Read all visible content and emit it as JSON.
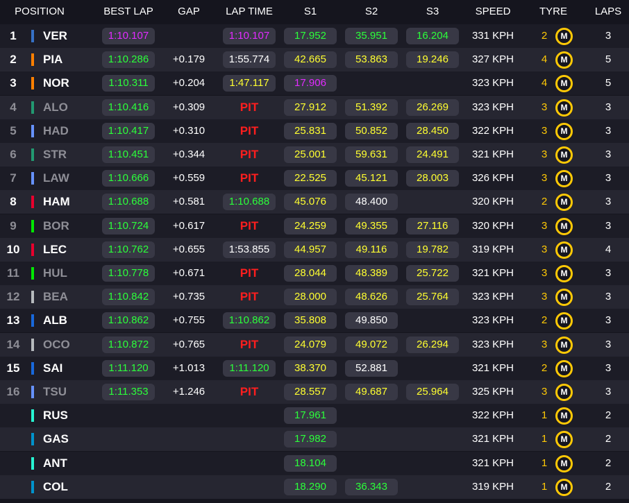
{
  "headers": {
    "position": "POSITION",
    "best_lap": "BEST LAP",
    "gap": "GAP",
    "lap_time": "LAP TIME",
    "s1": "S1",
    "s2": "S2",
    "s3": "S3",
    "speed": "SPEED",
    "tyre": "TYRE",
    "laps": "LAPS"
  },
  "tyre_compound_letter": "M",
  "colors": {
    "purple": "#e22bff",
    "green": "#2bff3a",
    "yellow": "#ffff30",
    "white": "#ffffff",
    "pit_red": "#ff1e1e",
    "tyre_medium": "#ffc906"
  },
  "rows": [
    {
      "pos": "1",
      "code": "VER",
      "team_color": "#3671c6",
      "running": true,
      "best_lap": "1:10.107",
      "best_lap_color": "purple",
      "gap": "",
      "lap_time": "1:10.107",
      "lap_time_color": "purple",
      "pit": "",
      "s1": "17.952",
      "s1_color": "green",
      "s2": "35.951",
      "s2_color": "green",
      "s3": "16.204",
      "s3_color": "green",
      "speed": "331 KPH",
      "tyre_age": "2",
      "laps": "3"
    },
    {
      "pos": "2",
      "code": "PIA",
      "team_color": "#ff8000",
      "running": true,
      "best_lap": "1:10.286",
      "best_lap_color": "green",
      "gap": "+0.179",
      "lap_time": "1:55.774",
      "lap_time_color": "white",
      "pit": "",
      "s1": "42.665",
      "s1_color": "yellow",
      "s2": "53.863",
      "s2_color": "yellow",
      "s3": "19.246",
      "s3_color": "yellow",
      "speed": "327 KPH",
      "tyre_age": "4",
      "laps": "5"
    },
    {
      "pos": "3",
      "code": "NOR",
      "team_color": "#ff8000",
      "running": true,
      "best_lap": "1:10.311",
      "best_lap_color": "green",
      "gap": "+0.204",
      "lap_time": "1:47.117",
      "lap_time_color": "yellow",
      "pit": "",
      "s1": "17.906",
      "s1_color": "purple",
      "s2": "",
      "s2_color": "white",
      "s3": "",
      "s3_color": "white",
      "speed": "323 KPH",
      "tyre_age": "4",
      "laps": "5"
    },
    {
      "pos": "4",
      "code": "ALO",
      "team_color": "#229971",
      "running": false,
      "best_lap": "1:10.416",
      "best_lap_color": "green",
      "gap": "+0.309",
      "lap_time": "",
      "lap_time_color": "white",
      "pit": "PIT",
      "s1": "27.912",
      "s1_color": "yellow",
      "s2": "51.392",
      "s2_color": "yellow",
      "s3": "26.269",
      "s3_color": "yellow",
      "speed": "323 KPH",
      "tyre_age": "3",
      "laps": "3"
    },
    {
      "pos": "5",
      "code": "HAD",
      "team_color": "#6692ff",
      "running": false,
      "best_lap": "1:10.417",
      "best_lap_color": "green",
      "gap": "+0.310",
      "lap_time": "",
      "lap_time_color": "white",
      "pit": "PIT",
      "s1": "25.831",
      "s1_color": "yellow",
      "s2": "50.852",
      "s2_color": "yellow",
      "s3": "28.450",
      "s3_color": "yellow",
      "speed": "322 KPH",
      "tyre_age": "3",
      "laps": "3"
    },
    {
      "pos": "6",
      "code": "STR",
      "team_color": "#229971",
      "running": false,
      "best_lap": "1:10.451",
      "best_lap_color": "green",
      "gap": "+0.344",
      "lap_time": "",
      "lap_time_color": "white",
      "pit": "PIT",
      "s1": "25.001",
      "s1_color": "yellow",
      "s2": "59.631",
      "s2_color": "yellow",
      "s3": "24.491",
      "s3_color": "yellow",
      "speed": "321 KPH",
      "tyre_age": "3",
      "laps": "3"
    },
    {
      "pos": "7",
      "code": "LAW",
      "team_color": "#6692ff",
      "running": false,
      "best_lap": "1:10.666",
      "best_lap_color": "green",
      "gap": "+0.559",
      "lap_time": "",
      "lap_time_color": "white",
      "pit": "PIT",
      "s1": "22.525",
      "s1_color": "yellow",
      "s2": "45.121",
      "s2_color": "yellow",
      "s3": "28.003",
      "s3_color": "yellow",
      "speed": "326 KPH",
      "tyre_age": "3",
      "laps": "3"
    },
    {
      "pos": "8",
      "code": "HAM",
      "team_color": "#e8002d",
      "running": true,
      "best_lap": "1:10.688",
      "best_lap_color": "green",
      "gap": "+0.581",
      "lap_time": "1:10.688",
      "lap_time_color": "green",
      "pit": "",
      "s1": "45.076",
      "s1_color": "yellow",
      "s2": "48.400",
      "s2_color": "white",
      "s3": "",
      "s3_color": "white",
      "speed": "320 KPH",
      "tyre_age": "2",
      "laps": "3"
    },
    {
      "pos": "9",
      "code": "BOR",
      "team_color": "#00e701",
      "running": false,
      "best_lap": "1:10.724",
      "best_lap_color": "green",
      "gap": "+0.617",
      "lap_time": "",
      "lap_time_color": "white",
      "pit": "PIT",
      "s1": "24.259",
      "s1_color": "yellow",
      "s2": "49.355",
      "s2_color": "yellow",
      "s3": "27.116",
      "s3_color": "yellow",
      "speed": "320 KPH",
      "tyre_age": "3",
      "laps": "3"
    },
    {
      "pos": "10",
      "code": "LEC",
      "team_color": "#e8002d",
      "running": true,
      "best_lap": "1:10.762",
      "best_lap_color": "green",
      "gap": "+0.655",
      "lap_time": "1:53.855",
      "lap_time_color": "white",
      "pit": "",
      "s1": "44.957",
      "s1_color": "yellow",
      "s2": "49.116",
      "s2_color": "yellow",
      "s3": "19.782",
      "s3_color": "yellow",
      "speed": "319 KPH",
      "tyre_age": "3",
      "laps": "4"
    },
    {
      "pos": "11",
      "code": "HUL",
      "team_color": "#00e701",
      "running": false,
      "best_lap": "1:10.778",
      "best_lap_color": "green",
      "gap": "+0.671",
      "lap_time": "",
      "lap_time_color": "white",
      "pit": "PIT",
      "s1": "28.044",
      "s1_color": "yellow",
      "s2": "48.389",
      "s2_color": "yellow",
      "s3": "25.722",
      "s3_color": "yellow",
      "speed": "321 KPH",
      "tyre_age": "3",
      "laps": "3"
    },
    {
      "pos": "12",
      "code": "BEA",
      "team_color": "#b6babd",
      "running": false,
      "best_lap": "1:10.842",
      "best_lap_color": "green",
      "gap": "+0.735",
      "lap_time": "",
      "lap_time_color": "white",
      "pit": "PIT",
      "s1": "28.000",
      "s1_color": "yellow",
      "s2": "48.626",
      "s2_color": "yellow",
      "s3": "25.764",
      "s3_color": "yellow",
      "speed": "323 KPH",
      "tyre_age": "3",
      "laps": "3"
    },
    {
      "pos": "13",
      "code": "ALB",
      "team_color": "#1868db",
      "running": true,
      "best_lap": "1:10.862",
      "best_lap_color": "green",
      "gap": "+0.755",
      "lap_time": "1:10.862",
      "lap_time_color": "green",
      "pit": "",
      "s1": "35.808",
      "s1_color": "yellow",
      "s2": "49.850",
      "s2_color": "white",
      "s3": "",
      "s3_color": "white",
      "speed": "323 KPH",
      "tyre_age": "2",
      "laps": "3"
    },
    {
      "pos": "14",
      "code": "OCO",
      "team_color": "#b6babd",
      "running": false,
      "best_lap": "1:10.872",
      "best_lap_color": "green",
      "gap": "+0.765",
      "lap_time": "",
      "lap_time_color": "white",
      "pit": "PIT",
      "s1": "24.079",
      "s1_color": "yellow",
      "s2": "49.072",
      "s2_color": "yellow",
      "s3": "26.294",
      "s3_color": "yellow",
      "speed": "323 KPH",
      "tyre_age": "3",
      "laps": "3"
    },
    {
      "pos": "15",
      "code": "SAI",
      "team_color": "#1868db",
      "running": true,
      "best_lap": "1:11.120",
      "best_lap_color": "green",
      "gap": "+1.013",
      "lap_time": "1:11.120",
      "lap_time_color": "green",
      "pit": "",
      "s1": "38.370",
      "s1_color": "yellow",
      "s2": "52.881",
      "s2_color": "white",
      "s3": "",
      "s3_color": "white",
      "speed": "321 KPH",
      "tyre_age": "2",
      "laps": "3"
    },
    {
      "pos": "16",
      "code": "TSU",
      "team_color": "#6692ff",
      "running": false,
      "best_lap": "1:11.353",
      "best_lap_color": "green",
      "gap": "+1.246",
      "lap_time": "",
      "lap_time_color": "white",
      "pit": "PIT",
      "s1": "28.557",
      "s1_color": "yellow",
      "s2": "49.687",
      "s2_color": "yellow",
      "s3": "25.964",
      "s3_color": "yellow",
      "speed": "325 KPH",
      "tyre_age": "3",
      "laps": "3"
    },
    {
      "pos": "",
      "code": "RUS",
      "team_color": "#27f4d2",
      "running": true,
      "best_lap": "",
      "best_lap_color": "white",
      "gap": "",
      "lap_time": "",
      "lap_time_color": "white",
      "pit": "",
      "s1": "17.961",
      "s1_color": "green",
      "s2": "",
      "s2_color": "white",
      "s3": "",
      "s3_color": "white",
      "speed": "322 KPH",
      "tyre_age": "1",
      "laps": "2"
    },
    {
      "pos": "",
      "code": "GAS",
      "team_color": "#0093cc",
      "running": true,
      "best_lap": "",
      "best_lap_color": "white",
      "gap": "",
      "lap_time": "",
      "lap_time_color": "white",
      "pit": "",
      "s1": "17.982",
      "s1_color": "green",
      "s2": "",
      "s2_color": "white",
      "s3": "",
      "s3_color": "white",
      "speed": "321 KPH",
      "tyre_age": "1",
      "laps": "2"
    },
    {
      "pos": "",
      "code": "ANT",
      "team_color": "#27f4d2",
      "running": true,
      "best_lap": "",
      "best_lap_color": "white",
      "gap": "",
      "lap_time": "",
      "lap_time_color": "white",
      "pit": "",
      "s1": "18.104",
      "s1_color": "green",
      "s2": "",
      "s2_color": "white",
      "s3": "",
      "s3_color": "white",
      "speed": "321 KPH",
      "tyre_age": "1",
      "laps": "2"
    },
    {
      "pos": "",
      "code": "COL",
      "team_color": "#0093cc",
      "running": true,
      "best_lap": "",
      "best_lap_color": "white",
      "gap": "",
      "lap_time": "",
      "lap_time_color": "white",
      "pit": "",
      "s1": "18.290",
      "s1_color": "green",
      "s2": "36.343",
      "s2_color": "green",
      "s3": "",
      "s3_color": "white",
      "speed": "319 KPH",
      "tyre_age": "1",
      "laps": "2"
    }
  ]
}
